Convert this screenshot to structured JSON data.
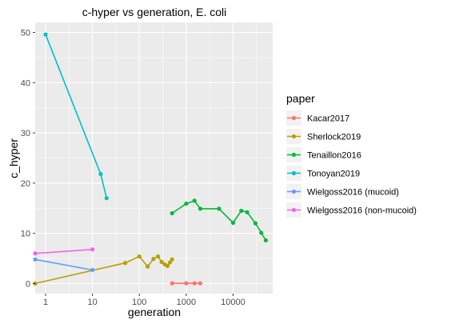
{
  "chart_data": {
    "type": "line",
    "title": "c-hyper vs generation, E. coli",
    "xlabel": "generation",
    "ylabel": "c_hyper",
    "x_scale": "log10",
    "xlim": [
      0.6,
      70000
    ],
    "ylim": [
      -2,
      52
    ],
    "x_ticks": [
      {
        "value": 1,
        "label": "1"
      },
      {
        "value": 10,
        "label": "10"
      },
      {
        "value": 100,
        "label": "100"
      },
      {
        "value": 1000,
        "label": "1000"
      },
      {
        "value": 10000,
        "label": "10000"
      }
    ],
    "y_ticks": [
      {
        "value": 0,
        "label": "0"
      },
      {
        "value": 10,
        "label": "10"
      },
      {
        "value": 20,
        "label": "20"
      },
      {
        "value": 30,
        "label": "30"
      },
      {
        "value": 40,
        "label": "40"
      },
      {
        "value": 50,
        "label": "50"
      }
    ],
    "background": "#ebebeb",
    "grid": true,
    "legend": {
      "title": "paper",
      "position": "right"
    },
    "series": [
      {
        "name": "Kacar2017",
        "color": "#F8766D",
        "points": [
          [
            500,
            0.05
          ],
          [
            1000,
            0.05
          ],
          [
            1500,
            0.05
          ],
          [
            2000,
            0.05
          ]
        ]
      },
      {
        "name": "Sherlock2019",
        "color": "#B79F00",
        "points": [
          [
            0.6,
            0.0
          ],
          [
            50,
            4.1
          ],
          [
            100,
            5.4
          ],
          [
            150,
            3.4
          ],
          [
            200,
            4.9
          ],
          [
            250,
            5.4
          ],
          [
            300,
            4.3
          ],
          [
            350,
            3.8
          ],
          [
            400,
            3.5
          ],
          [
            450,
            4.2
          ],
          [
            500,
            4.8
          ]
        ]
      },
      {
        "name": "Tenaillon2016",
        "color": "#00BA38",
        "points": [
          [
            500,
            14.0
          ],
          [
            1000,
            15.9
          ],
          [
            1500,
            16.5
          ],
          [
            2000,
            14.9
          ],
          [
            5000,
            14.9
          ],
          [
            10000,
            12.1
          ],
          [
            15000,
            14.5
          ],
          [
            20000,
            14.2
          ],
          [
            30000,
            12.0
          ],
          [
            40000,
            10.1
          ],
          [
            50000,
            8.6
          ]
        ]
      },
      {
        "name": "Tonoyan2019",
        "color": "#00BFC4",
        "points": [
          [
            1,
            49.6
          ],
          [
            15,
            21.8
          ],
          [
            20,
            17.0
          ]
        ]
      },
      {
        "name": "Wielgoss2016 (mucoid)",
        "color": "#619CFF",
        "points": [
          [
            0.6,
            4.8
          ],
          [
            10,
            2.7
          ]
        ]
      },
      {
        "name": "Wielgoss2016 (non-mucoid)",
        "color": "#F564E3",
        "points": [
          [
            0.6,
            6.0
          ],
          [
            10,
            6.8
          ]
        ]
      }
    ]
  }
}
